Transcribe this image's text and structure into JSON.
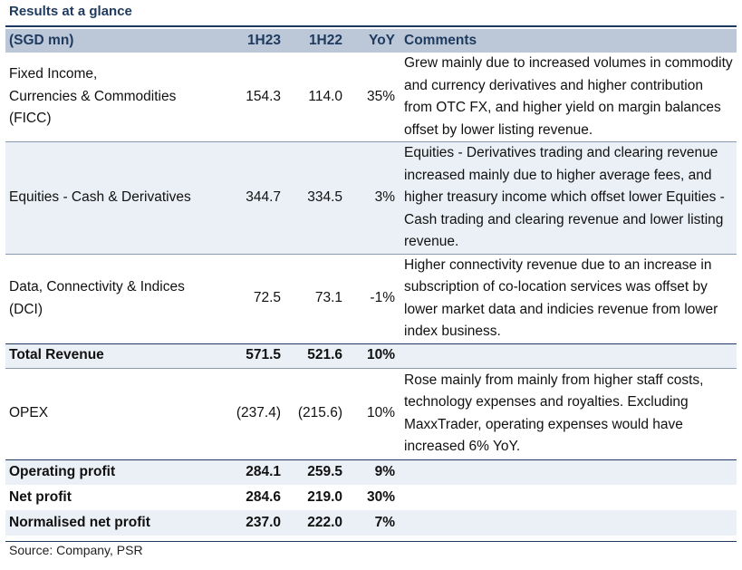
{
  "title": "Results at a glance",
  "headers": [
    "(SGD mn)",
    "1H23",
    "1H22",
    "YoY",
    "Comments"
  ],
  "rows": [
    {
      "label": "Fixed Income,\nCurrencies & Commodities\n(FICC)",
      "h23": "154.3",
      "h22": "114.0",
      "yoy": "35%",
      "comment": "Grew mainly due to increased volumes in commodity and currency derivatives and higher contribution from OTC FX, and higher yield on margin balances offset by lower listing revenue."
    },
    {
      "label": "Equities - Cash & Derivatives",
      "h23": "344.7",
      "h22": "334.5",
      "yoy": "3%",
      "comment": "Equities - Derivatives trading and clearing revenue increased mainly due to higher average fees, and higher treasury income which offset lower Equities - Cash trading and clearing revenue and lower listing revenue."
    },
    {
      "label": "Data, Connectivity & Indices\n(DCI)",
      "h23": "72.5",
      "h22": "73.1",
      "yoy": "-1%",
      "comment": "Higher connectivity revenue due to an increase in subscription of co-location services was offset by lower market data and indicies revenue from lower index business."
    },
    {
      "label": "Total Revenue",
      "h23": "571.5",
      "h22": "521.6",
      "yoy": "10%",
      "comment": ""
    },
    {
      "label": "OPEX",
      "h23": "(237.4)",
      "h22": "(215.6)",
      "yoy": "10%",
      "comment": "Rose mainly from mainly from higher staff costs, technology expenses and royalties. Excluding MaxxTrader, operating expenses would have increased 6% YoY."
    },
    {
      "label": "Operating profit",
      "h23": "284.1",
      "h22": "259.5",
      "yoy": "9%",
      "comment": ""
    },
    {
      "label": "Net profit",
      "h23": "284.6",
      "h22": "219.0",
      "yoy": "30%",
      "comment": ""
    },
    {
      "label": "Normalised net profit",
      "h23": "237.0",
      "h22": "222.0",
      "yoy": "7%",
      "comment": ""
    }
  ],
  "source": "Source: Company, PSR"
}
